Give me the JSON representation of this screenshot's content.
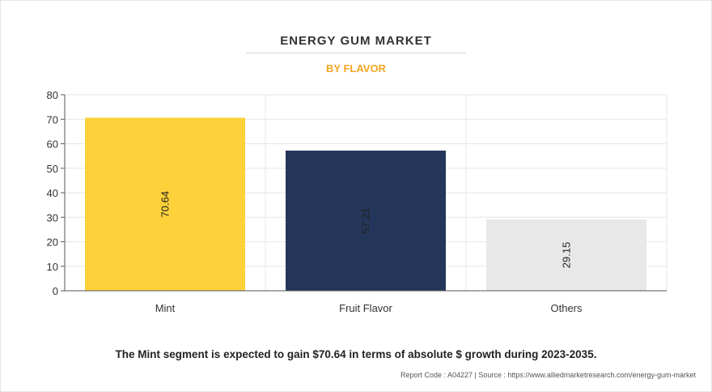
{
  "header": {
    "title": "ENERGY GUM MARKET",
    "subtitle": "BY FLAVOR"
  },
  "footer": {
    "summary": "The Mint segment is expected to gain $70.64 in terms of absolute $ growth during 2023-2035.",
    "source": "Report Code : A04227  |  Source : https://www.alliedmarketresearch.com/energy-gum-market"
  },
  "colors": {
    "accent": "#f5a623",
    "bars": [
      "#fdd13a",
      "#24375a",
      "#e8e8e8"
    ]
  },
  "chart_data": {
    "type": "bar",
    "title": "ENERGY GUM MARKET",
    "subtitle": "BY FLAVOR",
    "categories": [
      "Mint",
      "Fruit Flavor",
      "Others"
    ],
    "values": [
      70.64,
      57.21,
      29.15
    ],
    "data_labels": [
      "70.64",
      "57.21",
      "29.15"
    ],
    "yticks": [
      0,
      10,
      20,
      30,
      40,
      50,
      60,
      70,
      80
    ],
    "ylim": [
      0,
      80
    ],
    "xlabel": "",
    "ylabel": "",
    "grid": true,
    "legend": "none"
  }
}
